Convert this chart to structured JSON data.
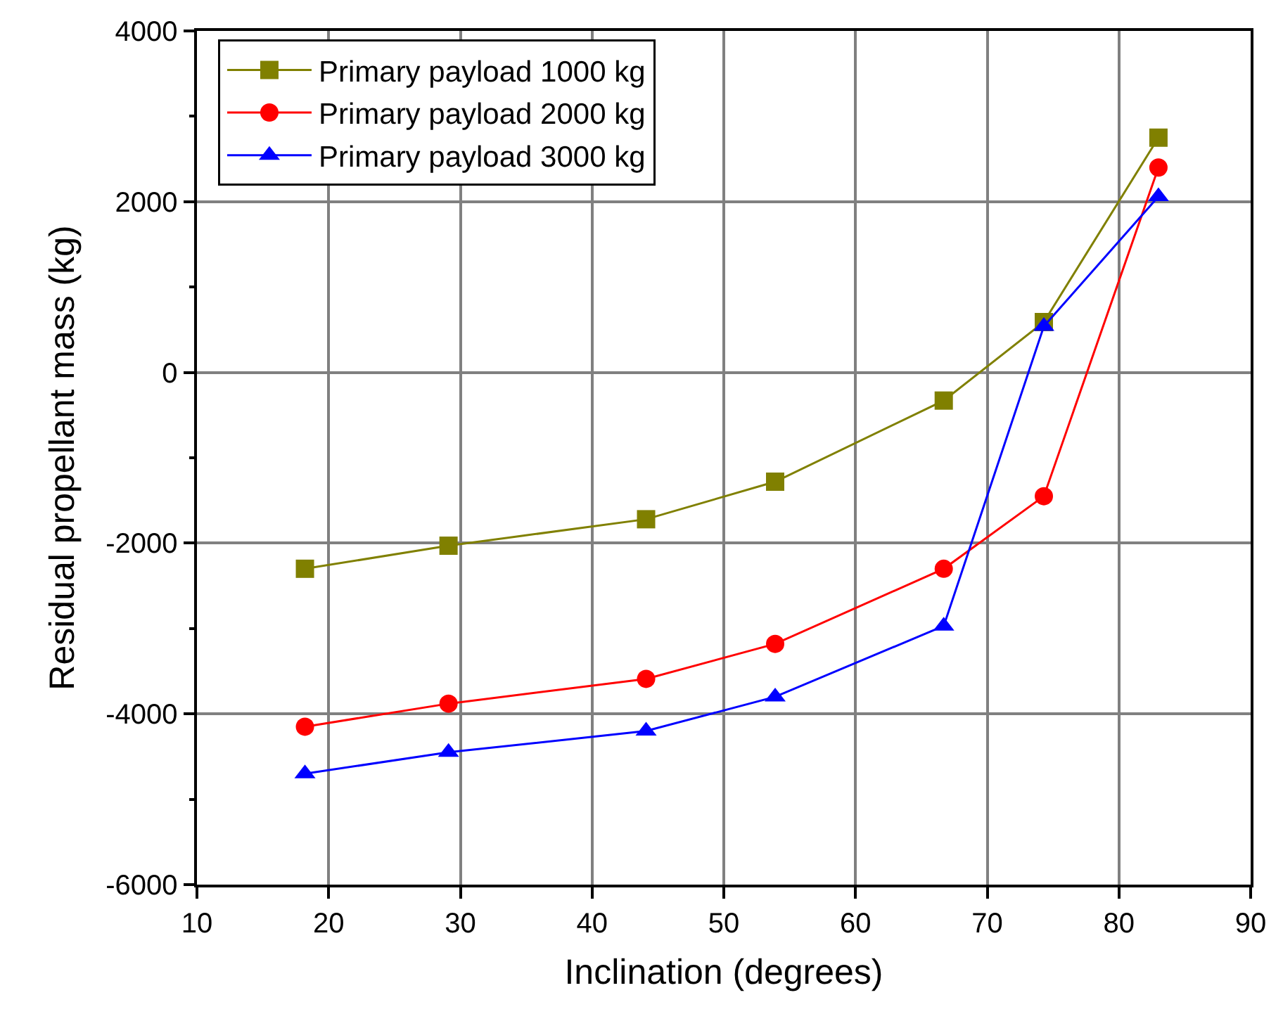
{
  "chart_data": {
    "type": "line",
    "xlabel": "Inclination (degrees)",
    "ylabel": "Residual propellant mass (kg)",
    "x": [
      18.2,
      29.1,
      44.1,
      53.9,
      66.7,
      74.3,
      83.0
    ],
    "xlim": [
      10,
      90
    ],
    "xticks": [
      10,
      20,
      30,
      40,
      50,
      60,
      70,
      80,
      90
    ],
    "ylim": [
      -6000,
      4000
    ],
    "yticks": [
      -6000,
      -4000,
      -2000,
      0,
      2000,
      4000
    ],
    "grid": true,
    "legend": "top left",
    "line_style": "solid",
    "series": [
      {
        "name": "Primary payload 1000 kg",
        "color": "#808000",
        "marker": "square",
        "values": [
          -2300,
          -2030,
          -1720,
          -1280,
          -330,
          590,
          2750
        ]
      },
      {
        "name": "Primary payload 2000 kg",
        "color": "#ff0000",
        "marker": "circle",
        "values": [
          -4150,
          -3880,
          -3590,
          -3180,
          -2300,
          -1450,
          2400
        ]
      },
      {
        "name": "Primary payload 3000 kg",
        "color": "#0000ff",
        "marker": "triangle",
        "values": [
          -4700,
          -4450,
          -4200,
          -3800,
          -2970,
          540,
          2060
        ]
      }
    ]
  }
}
